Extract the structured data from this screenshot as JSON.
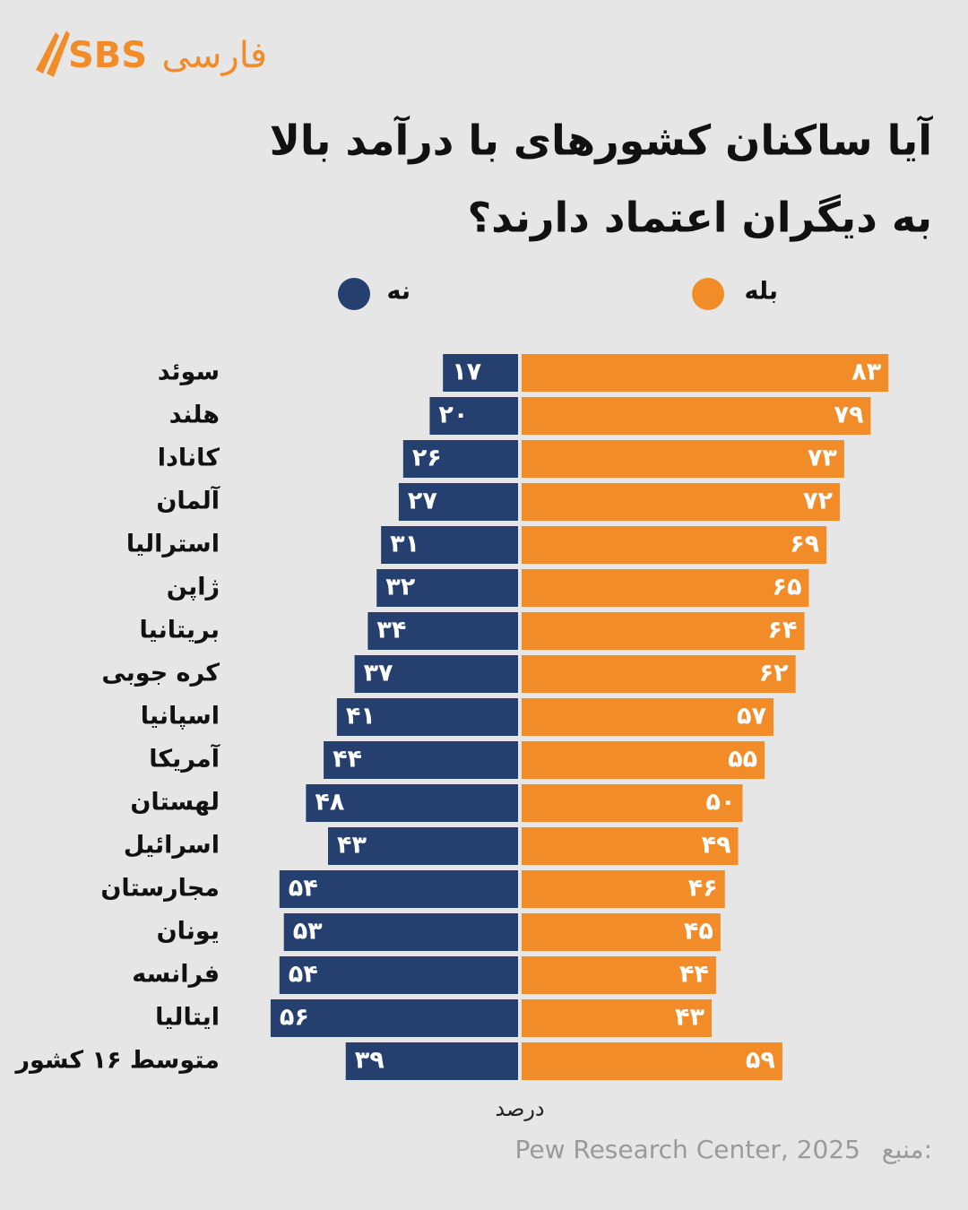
{
  "brand": {
    "logo": "SBS",
    "name": "فارسی"
  },
  "chart_data": {
    "type": "diverging-bar",
    "title": [
      "آیا ساکنان کشورهای با درآمد بالا",
      "به دیگران اعتماد دارند؟"
    ],
    "categories": [
      "سوئد",
      "هلند",
      "کانادا",
      "آلمان",
      "استرالیا",
      "ژاپن",
      "بریتانیا",
      "کره جوبی",
      "اسپانیا",
      "آمریکا",
      "لهستان",
      "اسرائیل",
      "مجارستان",
      "یونان",
      "فرانسه",
      "ایتالیا",
      "متوسط ۱۶ کشور"
    ],
    "series": [
      {
        "name": "بله",
        "color": "#f28c28",
        "side": "right",
        "values": [
          83,
          79,
          73,
          72,
          69,
          65,
          64,
          62,
          57,
          55,
          50,
          49,
          46,
          45,
          44,
          43,
          59
        ],
        "value_labels": [
          "۸۳",
          "۷۹",
          "۷۳",
          "۷۲",
          "۶۹",
          "۶۵",
          "۶۴",
          "۶۲",
          "۵۷",
          "۵۵",
          "۵۰",
          "۴۹",
          "۴۶",
          "۴۵",
          "۴۴",
          "۴۳",
          "۵۹"
        ]
      },
      {
        "name": "نه",
        "color": "#253f6e",
        "side": "left",
        "values": [
          17,
          20,
          26,
          27,
          31,
          32,
          34,
          37,
          41,
          44,
          48,
          43,
          54,
          53,
          54,
          56,
          39
        ],
        "value_labels": [
          "۱۷",
          "۲۰",
          "۲۶",
          "۲۷",
          "۳۱",
          "۳۲",
          "۳۴",
          "۳۷",
          "۴۱",
          "۴۴",
          "۴۸",
          "۴۳",
          "۵۴",
          "۵۳",
          "۵۴",
          "۵۶",
          "۳۹"
        ]
      }
    ],
    "x_label": "درصد",
    "source_label": "منبع:",
    "source": "Pew Research Center, 2025"
  }
}
